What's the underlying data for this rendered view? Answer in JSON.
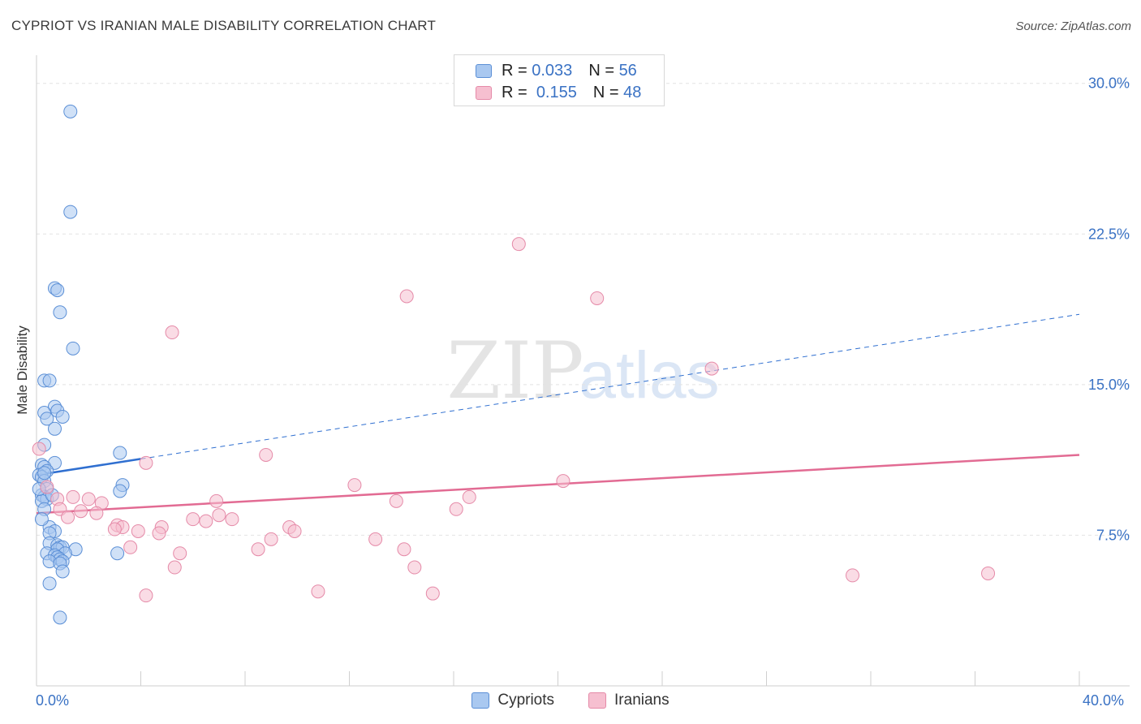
{
  "title": "CYPRIOT VS IRANIAN MALE DISABILITY CORRELATION CHART",
  "source": "Source: ZipAtlas.com",
  "watermark": {
    "zip": "ZIP",
    "atlas": "atlas"
  },
  "colors": {
    "cypriot_fill": "#a9c8f0",
    "cypriot_stroke": "#5b8fd6",
    "cypriot_line": "#2f6fd0",
    "iranian_fill": "#f6bfd0",
    "iranian_stroke": "#e58aa8",
    "iranian_line": "#e26b93",
    "tick_label": "#3a72c4",
    "grid": "#e2e2e2"
  },
  "legend_top": [
    {
      "r_label": "R =",
      "r_value": "0.033",
      "n_label": "N =",
      "n_value": "56"
    },
    {
      "r_label": "R =",
      "r_value": "0.155",
      "n_label": "N =",
      "n_value": "48"
    }
  ],
  "chart_data": {
    "type": "scatter",
    "title": "CYPRIOT VS IRANIAN MALE DISABILITY CORRELATION CHART",
    "xlabel": "",
    "ylabel": "Male Disability",
    "xlim": [
      0,
      40
    ],
    "ylim": [
      0,
      31
    ],
    "x_tick_labels": [
      "0.0%",
      "40.0%"
    ],
    "y_ticks": [
      7.5,
      15.0,
      22.5,
      30.0
    ],
    "y_tick_labels": [
      "7.5%",
      "15.0%",
      "22.5%",
      "30.0%"
    ],
    "grid": true,
    "legend_position": "bottom",
    "series": [
      {
        "name": "Cypriots",
        "r": 0.033,
        "n": 56,
        "trend": {
          "x0": 0,
          "y0": 10.5,
          "x1": 4.0,
          "y1": 11.3,
          "dashed_to_x": 40,
          "dashed_to_y": 18.5
        },
        "points": [
          [
            1.3,
            28.6
          ],
          [
            1.3,
            23.6
          ],
          [
            0.7,
            19.8
          ],
          [
            0.8,
            19.7
          ],
          [
            0.9,
            18.6
          ],
          [
            1.4,
            16.8
          ],
          [
            0.3,
            15.2
          ],
          [
            0.5,
            15.2
          ],
          [
            0.7,
            13.9
          ],
          [
            0.3,
            13.6
          ],
          [
            0.8,
            13.7
          ],
          [
            0.4,
            13.3
          ],
          [
            1.0,
            13.4
          ],
          [
            0.7,
            12.8
          ],
          [
            3.2,
            11.6
          ],
          [
            0.3,
            12.0
          ],
          [
            0.7,
            11.1
          ],
          [
            0.2,
            11.0
          ],
          [
            0.3,
            10.9
          ],
          [
            0.4,
            10.7
          ],
          [
            0.1,
            10.5
          ],
          [
            0.2,
            10.4
          ],
          [
            0.3,
            10.2
          ],
          [
            3.3,
            10.0
          ],
          [
            0.4,
            9.8
          ],
          [
            3.2,
            9.7
          ],
          [
            0.2,
            9.5
          ],
          [
            0.3,
            9.4
          ],
          [
            0.4,
            9.3
          ],
          [
            0.2,
            9.2
          ],
          [
            0.3,
            8.8
          ],
          [
            0.5,
            7.9
          ],
          [
            0.7,
            7.7
          ],
          [
            0.5,
            7.6
          ],
          [
            0.5,
            7.1
          ],
          [
            0.8,
            7.0
          ],
          [
            0.9,
            6.9
          ],
          [
            1.0,
            6.9
          ],
          [
            0.8,
            6.8
          ],
          [
            1.5,
            6.8
          ],
          [
            1.1,
            6.6
          ],
          [
            0.4,
            6.6
          ],
          [
            3.1,
            6.6
          ],
          [
            0.7,
            6.5
          ],
          [
            0.8,
            6.4
          ],
          [
            0.9,
            6.3
          ],
          [
            1.0,
            6.2
          ],
          [
            0.5,
            6.2
          ],
          [
            0.9,
            6.1
          ],
          [
            1.0,
            5.7
          ],
          [
            0.5,
            5.1
          ],
          [
            0.9,
            3.4
          ],
          [
            0.2,
            8.3
          ],
          [
            0.6,
            9.5
          ],
          [
            0.3,
            10.6
          ],
          [
            0.1,
            9.8
          ]
        ]
      },
      {
        "name": "Iranians",
        "r": 0.155,
        "n": 48,
        "trend": {
          "x0": 0,
          "y0": 8.6,
          "x1": 40,
          "y1": 11.5
        },
        "points": [
          [
            18.5,
            22.0
          ],
          [
            14.2,
            19.4
          ],
          [
            21.5,
            19.3
          ],
          [
            5.2,
            17.6
          ],
          [
            25.9,
            15.8
          ],
          [
            8.8,
            11.5
          ],
          [
            0.1,
            11.8
          ],
          [
            4.2,
            11.1
          ],
          [
            20.2,
            10.2
          ],
          [
            12.2,
            10.0
          ],
          [
            0.4,
            9.9
          ],
          [
            16.6,
            9.4
          ],
          [
            13.8,
            9.2
          ],
          [
            1.4,
            9.4
          ],
          [
            2.0,
            9.3
          ],
          [
            0.8,
            9.3
          ],
          [
            2.5,
            9.1
          ],
          [
            6.9,
            9.2
          ],
          [
            16.1,
            8.8
          ],
          [
            0.9,
            8.8
          ],
          [
            1.7,
            8.7
          ],
          [
            2.3,
            8.6
          ],
          [
            7.0,
            8.5
          ],
          [
            1.2,
            8.4
          ],
          [
            6.0,
            8.3
          ],
          [
            7.5,
            8.3
          ],
          [
            6.5,
            8.2
          ],
          [
            3.1,
            8.0
          ],
          [
            3.3,
            7.9
          ],
          [
            4.8,
            7.9
          ],
          [
            9.7,
            7.9
          ],
          [
            9.9,
            7.7
          ],
          [
            3.0,
            7.8
          ],
          [
            3.9,
            7.7
          ],
          [
            4.7,
            7.6
          ],
          [
            9.0,
            7.3
          ],
          [
            13.0,
            7.3
          ],
          [
            3.6,
            6.9
          ],
          [
            8.5,
            6.8
          ],
          [
            14.1,
            6.8
          ],
          [
            5.5,
            6.6
          ],
          [
            5.3,
            5.9
          ],
          [
            14.5,
            5.9
          ],
          [
            31.3,
            5.5
          ],
          [
            36.5,
            5.6
          ],
          [
            10.8,
            4.7
          ],
          [
            15.2,
            4.6
          ],
          [
            4.2,
            4.5
          ]
        ]
      }
    ]
  }
}
